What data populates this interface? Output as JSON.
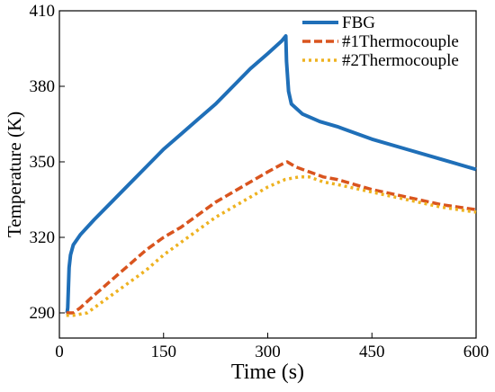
{
  "chart_data": {
    "type": "line",
    "xlabel": "Time (s)",
    "ylabel": "Temperature (K)",
    "xlim": [
      0,
      600
    ],
    "ylim": [
      280,
      410
    ],
    "xticks": [
      0,
      150,
      300,
      450,
      600
    ],
    "yticks": [
      290,
      320,
      350,
      380,
      410
    ],
    "x_tick_labels": [
      "0",
      "150",
      "300",
      "450",
      "600"
    ],
    "y_tick_labels": [
      "290",
      "320",
      "350",
      "380",
      "410"
    ],
    "grid": false,
    "legend_position": "top-right",
    "series": [
      {
        "name": "FBG",
        "color": "#1f6fb8",
        "style": "solid",
        "points": [
          [
            10,
            290
          ],
          [
            11,
            290
          ],
          [
            12,
            292
          ],
          [
            13,
            300
          ],
          [
            14,
            308
          ],
          [
            16,
            313
          ],
          [
            20,
            317
          ],
          [
            30,
            321
          ],
          [
            50,
            327
          ],
          [
            75,
            334
          ],
          [
            100,
            341
          ],
          [
            125,
            348
          ],
          [
            150,
            355
          ],
          [
            175,
            361
          ],
          [
            200,
            367
          ],
          [
            225,
            373
          ],
          [
            250,
            380
          ],
          [
            275,
            387
          ],
          [
            300,
            393
          ],
          [
            320,
            398
          ],
          [
            326,
            400
          ],
          [
            327,
            390
          ],
          [
            330,
            378
          ],
          [
            334,
            373
          ],
          [
            350,
            369
          ],
          [
            375,
            366
          ],
          [
            400,
            364
          ],
          [
            450,
            359
          ],
          [
            500,
            355
          ],
          [
            550,
            351
          ],
          [
            600,
            347
          ]
        ]
      },
      {
        "name": "#1Thermocouple",
        "color": "#d9541e",
        "style": "dashed",
        "points": [
          [
            10,
            290
          ],
          [
            20,
            290
          ],
          [
            30,
            292
          ],
          [
            50,
            297
          ],
          [
            75,
            303
          ],
          [
            100,
            309
          ],
          [
            125,
            315
          ],
          [
            150,
            320
          ],
          [
            175,
            324
          ],
          [
            200,
            329
          ],
          [
            225,
            334
          ],
          [
            250,
            338
          ],
          [
            275,
            342
          ],
          [
            300,
            346
          ],
          [
            320,
            349
          ],
          [
            328,
            350
          ],
          [
            340,
            348
          ],
          [
            360,
            346
          ],
          [
            380,
            344
          ],
          [
            400,
            343
          ],
          [
            450,
            339
          ],
          [
            500,
            336
          ],
          [
            550,
            333
          ],
          [
            600,
            331
          ]
        ]
      },
      {
        "name": "#2Thermocouple",
        "color": "#eeb220",
        "style": "dotted",
        "points": [
          [
            10,
            289
          ],
          [
            20,
            289
          ],
          [
            40,
            290
          ],
          [
            60,
            294
          ],
          [
            80,
            298
          ],
          [
            100,
            302
          ],
          [
            125,
            307
          ],
          [
            150,
            313
          ],
          [
            175,
            318
          ],
          [
            200,
            323
          ],
          [
            225,
            328
          ],
          [
            250,
            332
          ],
          [
            275,
            336
          ],
          [
            300,
            340
          ],
          [
            325,
            343
          ],
          [
            345,
            344
          ],
          [
            360,
            344
          ],
          [
            380,
            342
          ],
          [
            400,
            341
          ],
          [
            450,
            338
          ],
          [
            500,
            335
          ],
          [
            550,
            332
          ],
          [
            600,
            330
          ]
        ]
      }
    ]
  }
}
